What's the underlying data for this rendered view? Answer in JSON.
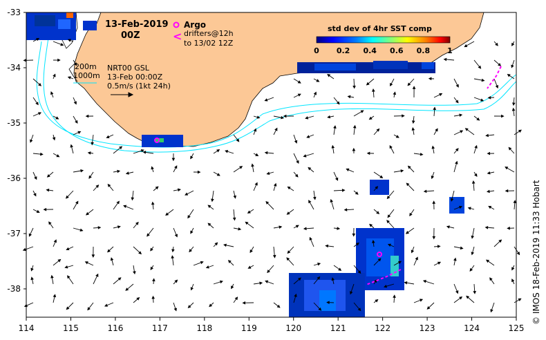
{
  "header": {
    "date": "13-Feb-2019",
    "time": "00Z"
  },
  "legend": {
    "argo_symbol": "o",
    "argo_label": "Argo",
    "drifter_symbol": "<",
    "drifter_label_1": "drifters@12h",
    "drifter_label_2": "to 13/02 12Z"
  },
  "colorbar": {
    "title": "std dev of 4hr SST comp",
    "ticks": [
      "0",
      "0.2",
      "0.4",
      "0.6",
      "0.8",
      "1"
    ],
    "colors": [
      "#00007f",
      "#0000ff",
      "#007fff",
      "#00ffff",
      "#7fff7f",
      "#ffff00",
      "#ff7f00",
      "#ff0000",
      "#7f0000"
    ]
  },
  "isobaths": {
    "label_1": "200m",
    "label_2": "1000m",
    "color": "#00e5ff"
  },
  "currents_info": {
    "line_1": "NRT00 GSL",
    "line_2": "13-Feb 00:00Z",
    "line_3": "0.5m/s (1kt 24h)"
  },
  "axes": {
    "x_ticks": [
      "114",
      "115",
      "116",
      "117",
      "118",
      "119",
      "120",
      "121",
      "122",
      "123",
      "124",
      "125"
    ],
    "y_ticks": [
      "-33",
      "-34",
      "-35",
      "-36",
      "-37",
      "-38"
    ]
  },
  "credit": "© IMOS 18-Feb-2019 11:33 Hobart",
  "colors": {
    "land": "#fcc896",
    "ocean": "#ffffff",
    "argo": "#ff00ff",
    "drifter": "#ff00ff"
  }
}
